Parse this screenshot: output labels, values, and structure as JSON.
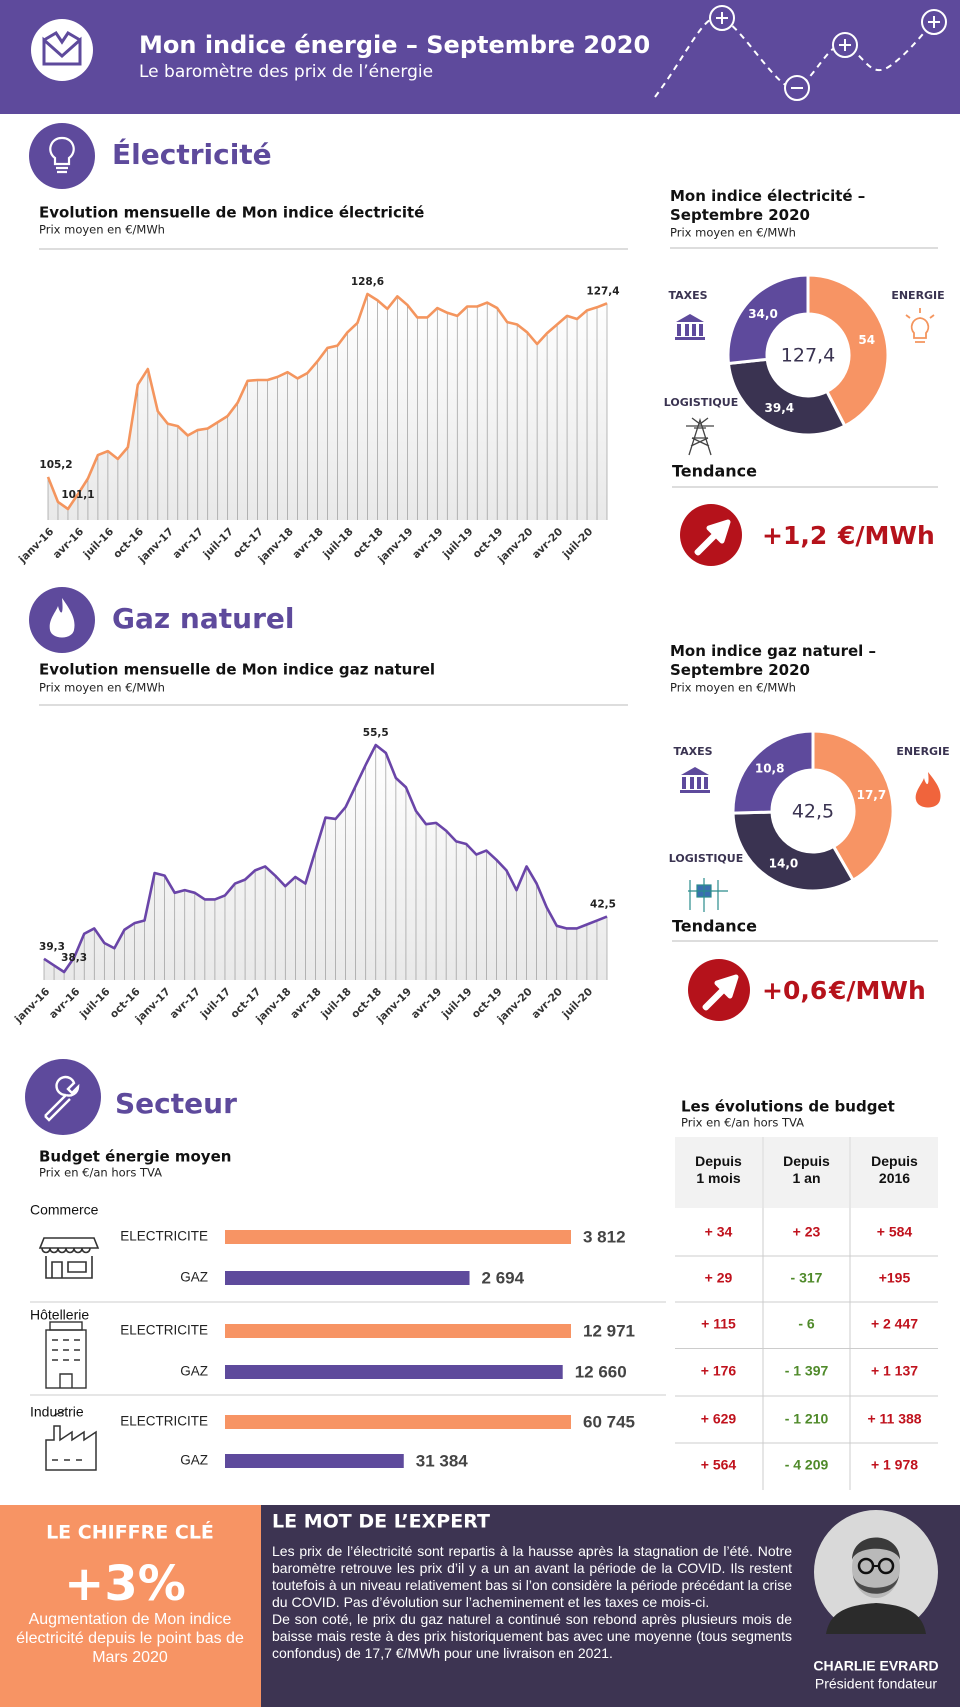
{
  "header": {
    "title": "Mon indice énergie – Septembre 2020",
    "subtitle": "Le baromètre des prix de l’énergie"
  },
  "electricity": {
    "section_title": "Électricité",
    "trend_title": "Tendance",
    "trend_value": "+1,2",
    "trend_unit": "€/MWh"
  },
  "gas": {
    "section_title": "Gaz naturel",
    "trend_title": "Tendance",
    "trend_value": "+0,6",
    "trend_unit": "€/MWh"
  },
  "sector": {
    "section_title": "Secteur"
  },
  "budget_table": {
    "title": "Les évolutions de budget",
    "subtitle": "Prix en €/an hors TVA",
    "columns": [
      "Depuis\n1 mois",
      "Depuis\n1 an",
      "Depuis\n2016"
    ],
    "rows": [
      [
        "+ 34",
        "+ 23",
        "+ 584"
      ],
      [
        "+ 29",
        "- 317",
        "+195"
      ],
      [
        "+ 115",
        "- 6",
        "+ 2 447"
      ],
      [
        "+ 176",
        "- 1 397",
        "+ 1 137"
      ],
      [
        "+ 629",
        "- 1 210",
        "+ 11 388"
      ],
      [
        "+ 564",
        "- 4 209",
        "+ 1 978"
      ]
    ]
  },
  "key_figure": {
    "title": "LE CHIFFRE CLÉ",
    "value": "+3%",
    "description": "Augmentation de Mon indice électricité depuis le point bas de Mars 2020"
  },
  "expert": {
    "title": "LE MOT DE L’EXPERT",
    "paragraphs": [
      "Les prix de l’électricité sont repartis à la hausse après la stagnation de l’été. Notre baromètre retrouve les prix d’il y a un an avant la période de la COVID. Ils restent toutefois à un niveau relativement bas si l’on considère la période précédant la crise du COVID. Pas d’évolution sur l’acheminement et les taxes ce mois-ci.",
      "De son coté, le prix du gaz naturel a continué son rebond après plusieurs mois de baisse mais reste à des prix historiquement bas avec une moyenne (tous segments confondus) de 17,7 €/MWh pour une livraison en 2021."
    ],
    "name": "CHARLIE EVRARD",
    "role": "Président fondateur"
  },
  "chart_data": [
    {
      "type": "line",
      "title": "Evolution mensuelle de Mon indice électricité",
      "subtitle": "Prix moyen en €/MWh",
      "color": "#f4955e",
      "categories": [
        "janv-16",
        null,
        null,
        "avr-16",
        null,
        null,
        "juil-16",
        null,
        null,
        "oct-16",
        null,
        null,
        "janv-17",
        null,
        null,
        "avr-17",
        null,
        null,
        "juil-17",
        null,
        null,
        "oct-17",
        null,
        null,
        "janv-18",
        null,
        null,
        "avr-18",
        null,
        null,
        "juil-18",
        null,
        null,
        "oct-18",
        null,
        null,
        "janv-19",
        null,
        null,
        "avr-19",
        null,
        null,
        "juil-19",
        null,
        null,
        "oct-19",
        null,
        null,
        "janv-20",
        null,
        null,
        "avr-20",
        null,
        null,
        "juil-20",
        null,
        null
      ],
      "values": [
        105.2,
        102.0,
        101.1,
        103.0,
        105.0,
        108.0,
        108.5,
        107.5,
        109.0,
        117.0,
        119.0,
        113.6,
        112.0,
        111.7,
        110.5,
        111.2,
        111.4,
        112.2,
        113.0,
        114.7,
        117.5,
        117.6,
        117.6,
        118.0,
        118.6,
        117.8,
        118.5,
        120.0,
        121.7,
        122.0,
        123.7,
        124.9,
        128.6,
        127.8,
        126.7,
        128.3,
        127.2,
        125.6,
        125.6,
        126.8,
        126.2,
        125.8,
        127.0,
        127.0,
        127.5,
        126.8,
        125.0,
        124.7,
        123.7,
        122.2,
        123.6,
        124.7,
        125.8,
        125.4,
        126.5,
        126.9,
        127.4
      ],
      "value_labels": [
        "105,2",
        null,
        "101,1",
        null,
        null,
        null,
        null,
        null,
        null,
        null,
        null,
        null,
        null,
        null,
        null,
        null,
        null,
        null,
        null,
        null,
        null,
        null,
        null,
        null,
        null,
        null,
        null,
        null,
        null,
        null,
        null,
        null,
        "128,6",
        null,
        null,
        null,
        null,
        null,
        null,
        null,
        null,
        null,
        null,
        null,
        null,
        null,
        null,
        null,
        null,
        null,
        null,
        null,
        null,
        null,
        null,
        null,
        "127,4"
      ]
    },
    {
      "type": "pie",
      "donut": true,
      "title": "Mon indice électricité – Septembre 2020",
      "subtitle": "Prix moyen en €/MWh",
      "categories": [
        "ENERGIE",
        "LOGISTIQUE",
        "TAXES"
      ],
      "values": [
        54,
        39.4,
        34.0
      ],
      "value_labels": [
        "54",
        "39,4",
        "34,0"
      ],
      "colors": [
        "#f79464",
        "#3a3351",
        "#5e4a9c"
      ],
      "center_label": "127,4"
    },
    {
      "type": "line",
      "title": "Evolution mensuelle de Mon indice gaz naturel",
      "subtitle": "Prix moyen en €/MWh",
      "color": "#6a45a8",
      "categories": [
        "janv-16",
        null,
        null,
        "avr-16",
        null,
        null,
        "juil-16",
        null,
        null,
        "oct-16",
        null,
        null,
        "janv-17",
        null,
        null,
        "avr-17",
        null,
        null,
        "juil-17",
        null,
        null,
        "oct-17",
        null,
        null,
        "janv-18",
        null,
        null,
        "avr-18",
        null,
        null,
        "juil-18",
        null,
        null,
        "oct-18",
        null,
        null,
        "janv-19",
        null,
        null,
        "avr-19",
        null,
        null,
        "juil-19",
        null,
        null,
        "oct-19",
        null,
        null,
        "janv-20",
        null,
        null,
        "avr-20",
        null,
        null,
        "juil-20",
        null,
        null
      ],
      "values": [
        39.3,
        38.8,
        38.3,
        39.4,
        41.2,
        41.6,
        40.5,
        40.1,
        41.5,
        42.0,
        42.2,
        45.8,
        45.6,
        44.3,
        44.5,
        44.3,
        43.8,
        43.8,
        44.1,
        45.0,
        45.3,
        46.0,
        46.3,
        45.6,
        44.8,
        45.5,
        45.0,
        47.5,
        50.0,
        49.9,
        50.8,
        52.4,
        54.0,
        55.5,
        54.9,
        53.0,
        52.3,
        50.5,
        49.5,
        49.6,
        49.0,
        48.2,
        48.0,
        47.2,
        47.5,
        46.8,
        46.0,
        44.5,
        46.3,
        45.0,
        43.2,
        41.8,
        41.6,
        41.6,
        41.9,
        42.2,
        42.5
      ],
      "value_labels": [
        "39,3",
        null,
        "38,3",
        null,
        null,
        null,
        null,
        null,
        null,
        null,
        null,
        null,
        null,
        null,
        null,
        null,
        null,
        null,
        null,
        null,
        null,
        null,
        null,
        null,
        null,
        null,
        null,
        null,
        null,
        null,
        null,
        null,
        null,
        "55,5",
        null,
        null,
        null,
        null,
        null,
        null,
        null,
        null,
        null,
        null,
        null,
        null,
        null,
        null,
        null,
        null,
        null,
        null,
        null,
        null,
        null,
        null,
        "42,5"
      ]
    },
    {
      "type": "pie",
      "donut": true,
      "title": "Mon indice gaz naturel – Septembre 2020",
      "subtitle": "Prix moyen en €/MWh",
      "categories": [
        "ENERGIE",
        "LOGISTIQUE",
        "TAXES"
      ],
      "values": [
        17.7,
        14.0,
        10.8
      ],
      "value_labels": [
        "17,7",
        "14,0",
        "10,8"
      ],
      "colors": [
        "#f79464",
        "#3a3351",
        "#5e4a9c"
      ],
      "center_label": "42,5"
    },
    {
      "type": "bar",
      "orientation": "horizontal",
      "title": "Budget énergie moyen",
      "subtitle": "Prix en €/an hors TVA",
      "colors": [
        "#f79464",
        "#5e4a9c"
      ],
      "groups": [
        {
          "name": "Commerce",
          "categories": [
            "ELECTRICITE",
            "GAZ"
          ],
          "values": [
            3812,
            2694
          ],
          "value_labels": [
            "3 812",
            "2 694"
          ]
        },
        {
          "name": "Hôtellerie",
          "categories": [
            "ELECTRICITE",
            "GAZ"
          ],
          "values": [
            12971,
            12660
          ],
          "value_labels": [
            "12 971",
            "12 660"
          ]
        },
        {
          "name": "Industrie",
          "categories": [
            "ELECTRICITE",
            "GAZ"
          ],
          "values": [
            60745,
            31384
          ],
          "value_labels": [
            "60 745",
            "31 384"
          ]
        }
      ]
    }
  ]
}
